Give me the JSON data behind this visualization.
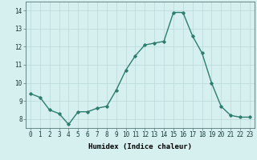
{
  "x": [
    0,
    1,
    2,
    3,
    4,
    5,
    6,
    7,
    8,
    9,
    10,
    11,
    12,
    13,
    14,
    15,
    16,
    17,
    18,
    19,
    20,
    21,
    22,
    23
  ],
  "y": [
    9.4,
    9.2,
    8.5,
    8.3,
    7.7,
    8.4,
    8.4,
    8.6,
    8.7,
    9.6,
    10.7,
    11.5,
    12.1,
    12.2,
    12.3,
    13.9,
    13.9,
    12.6,
    11.65,
    10.0,
    8.7,
    8.2,
    8.1,
    8.1
  ],
  "line_color": "#2e7d6e",
  "marker": "D",
  "marker_size": 1.8,
  "bg_color": "#d6f0f0",
  "grid_color": "#b8d8d8",
  "xlabel": "Humidex (Indice chaleur)",
  "xlabel_fontsize": 6.5,
  "ylim": [
    7.5,
    14.5
  ],
  "xlim": [
    -0.5,
    23.5
  ],
  "yticks": [
    8,
    9,
    10,
    11,
    12,
    13,
    14
  ],
  "xticks": [
    0,
    1,
    2,
    3,
    4,
    5,
    6,
    7,
    8,
    9,
    10,
    11,
    12,
    13,
    14,
    15,
    16,
    17,
    18,
    19,
    20,
    21,
    22,
    23
  ],
  "tick_fontsize": 5.5,
  "linewidth": 1.0
}
